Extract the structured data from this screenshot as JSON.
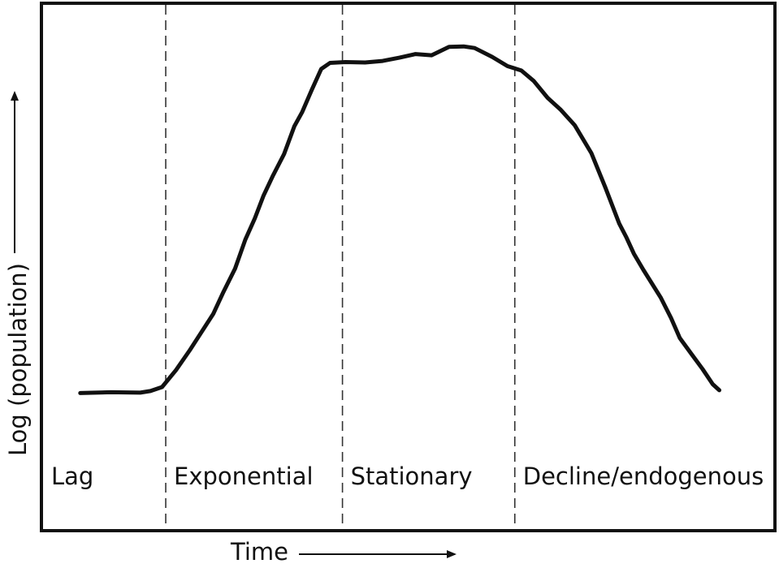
{
  "chart_data": {
    "type": "line",
    "title": "",
    "xlabel": "Time",
    "ylabel": "Log (population)",
    "xlim": [
      0,
      100
    ],
    "ylim": [
      0,
      100
    ],
    "grid": false,
    "legend": "none",
    "axis_arrows": true,
    "line_color": "#111111",
    "phases": [
      {
        "label": "Lag",
        "start": 0,
        "end": 16.8
      },
      {
        "label": "Exponential",
        "start": 16.8,
        "end": 41.0
      },
      {
        "label": "Stationary",
        "start": 41.0,
        "end": 64.6
      },
      {
        "label": "Decline/endogenous",
        "start": 64.6,
        "end": 100
      }
    ],
    "phase_boundaries": [
      16.8,
      41.0,
      64.6
    ],
    "series": [
      {
        "x": [
          5.1,
          9.3,
          13.3,
          14.7,
          16.3,
          18.2,
          20.1,
          21.7,
          23.3,
          24.7,
          26.3,
          27.7,
          29.0,
          30.2,
          31.5,
          33.0,
          34.4,
          35.5,
          36.8,
          38.1,
          39.3,
          41.4,
          44.1,
          46.5,
          48.8,
          51.0,
          53.2,
          55.6,
          57.6,
          59.1,
          61.5,
          63.6,
          65.5,
          67.2,
          69.1,
          70.9,
          72.8,
          75.1,
          77.0,
          78.9,
          79.9,
          80.9,
          82.2,
          84.6,
          86.0,
          87.2,
          88.8,
          90.3,
          91.7,
          92.6
        ],
        "y": [
          18.3,
          18.5,
          18.4,
          18.8,
          19.8,
          24.0,
          29.0,
          33.5,
          38.0,
          43.5,
          49.3,
          56.5,
          61.8,
          67.5,
          72.5,
          77.8,
          84.7,
          88.3,
          93.8,
          99.0,
          100.5,
          100.7,
          100.6,
          101.0,
          101.8,
          102.7,
          102.4,
          104.5,
          104.6,
          104.2,
          102.0,
          99.7,
          98.6,
          96.0,
          91.8,
          88.8,
          85.0,
          78.0,
          69.5,
          60.5,
          57.0,
          53.0,
          49.0,
          42.0,
          37.0,
          32.0,
          28.0,
          24.3,
          20.5,
          19.0
        ]
      }
    ]
  }
}
